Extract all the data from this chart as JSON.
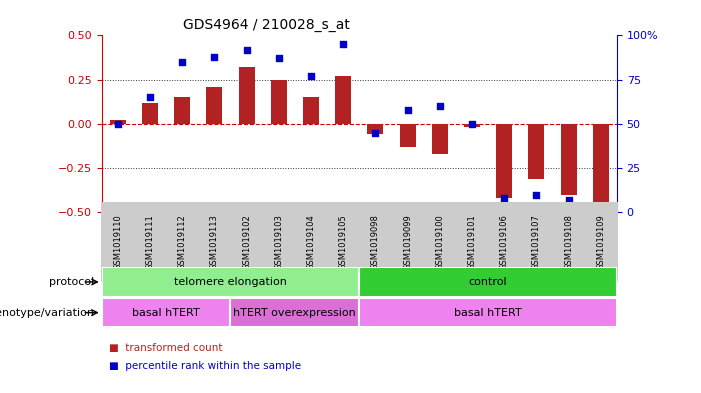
{
  "title": "GDS4964 / 210028_s_at",
  "samples": [
    "GSM1019110",
    "GSM1019111",
    "GSM1019112",
    "GSM1019113",
    "GSM1019102",
    "GSM1019103",
    "GSM1019104",
    "GSM1019105",
    "GSM1019098",
    "GSM1019099",
    "GSM1019100",
    "GSM1019101",
    "GSM1019106",
    "GSM1019107",
    "GSM1019108",
    "GSM1019109"
  ],
  "transformed_count": [
    0.02,
    0.12,
    0.15,
    0.21,
    0.32,
    0.25,
    0.15,
    0.27,
    -0.06,
    -0.13,
    -0.17,
    -0.02,
    -0.42,
    -0.31,
    -0.4,
    -0.49
  ],
  "percentile_rank": [
    50,
    65,
    85,
    88,
    92,
    87,
    77,
    95,
    45,
    58,
    60,
    50,
    8,
    10,
    7,
    2
  ],
  "bar_color": "#b22222",
  "dot_color": "#0000cc",
  "ylim_left": [
    -0.5,
    0.5
  ],
  "ylim_right": [
    0,
    100
  ],
  "yticks_left": [
    -0.5,
    -0.25,
    0.0,
    0.25,
    0.5
  ],
  "yticks_right": [
    0,
    25,
    50,
    75,
    100
  ],
  "hline_color": "#cc0000",
  "dotted_line_color": "#333333",
  "dotted_lines": [
    -0.25,
    0.25
  ],
  "protocol_groups": [
    {
      "label": "telomere elongation",
      "start": 0,
      "end": 8,
      "color": "#90ee90"
    },
    {
      "label": "control",
      "start": 8,
      "end": 16,
      "color": "#32cd32"
    }
  ],
  "genotype_groups": [
    {
      "label": "basal hTERT",
      "start": 0,
      "end": 4,
      "color": "#ee82ee"
    },
    {
      "label": "hTERT overexpression",
      "start": 4,
      "end": 8,
      "color": "#da70d6"
    },
    {
      "label": "basal hTERT",
      "start": 8,
      "end": 16,
      "color": "#ee82ee"
    }
  ],
  "protocol_label": "protocol",
  "genotype_label": "genotype/variation",
  "legend_items": [
    {
      "label": "transformed count",
      "color": "#b22222"
    },
    {
      "label": "percentile rank within the sample",
      "color": "#0000cc"
    }
  ],
  "tick_bg_color": "#cccccc",
  "right_axis_color": "#0000cc",
  "left_axis_color": "#cc0000",
  "bg_color": "#ffffff"
}
